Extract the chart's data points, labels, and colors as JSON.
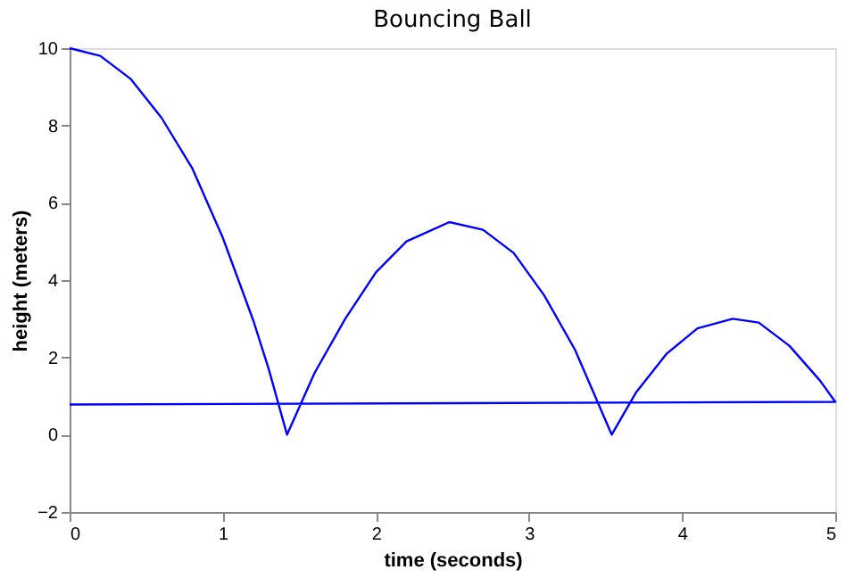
{
  "chart_data": {
    "type": "line",
    "title": "Bouncing Ball",
    "xlabel": "time (seconds)",
    "ylabel": "height (meters)",
    "series": [
      {
        "color": "#0000ff",
        "x": [
          0,
          0.2,
          0.4,
          0.6,
          0.8,
          1.0,
          1.2,
          1.3,
          1.42,
          1.6,
          1.8,
          2.0,
          2.2,
          2.48,
          2.7,
          2.9,
          3.1,
          3.3,
          3.54,
          3.7,
          3.9,
          4.1,
          4.33,
          4.5,
          4.7,
          4.9,
          5.0,
          0
        ],
        "values": [
          10,
          9.8,
          9.2,
          8.2,
          6.9,
          5.1,
          2.95,
          1.7,
          0,
          1.6,
          3.0,
          4.2,
          5.0,
          5.5,
          5.3,
          4.7,
          3.6,
          2.2,
          0,
          1.1,
          2.1,
          2.75,
          3.0,
          2.9,
          2.3,
          1.4,
          0.85,
          0.78
        ]
      }
    ],
    "xlim": [
      0,
      5
    ],
    "xticks": [
      0,
      1,
      2,
      3,
      4,
      5
    ],
    "ylim": [
      -2,
      10
    ],
    "yticks": [
      -2,
      0,
      2,
      4,
      6,
      8,
      10
    ],
    "grid": false,
    "legend": false,
    "marker": "none",
    "line_style": "solid"
  }
}
